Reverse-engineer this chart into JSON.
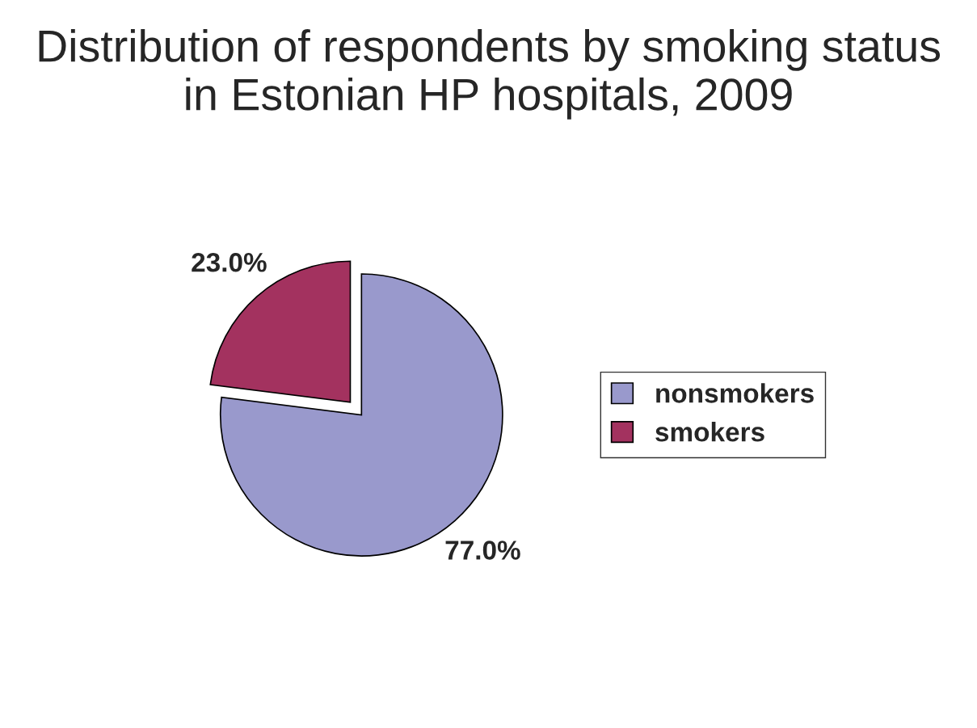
{
  "chart_data": {
    "type": "pie",
    "title": "Distribution of respondents by smoking status\nin Estonian HP hospitals, 2009",
    "categories": [
      "nonsmokers",
      "smokers"
    ],
    "values": [
      77.0,
      23.0
    ],
    "colors": [
      "#9999cc",
      "#a3325f"
    ],
    "value_labels": [
      "77.0%",
      "23.0%"
    ],
    "legend": "right"
  }
}
